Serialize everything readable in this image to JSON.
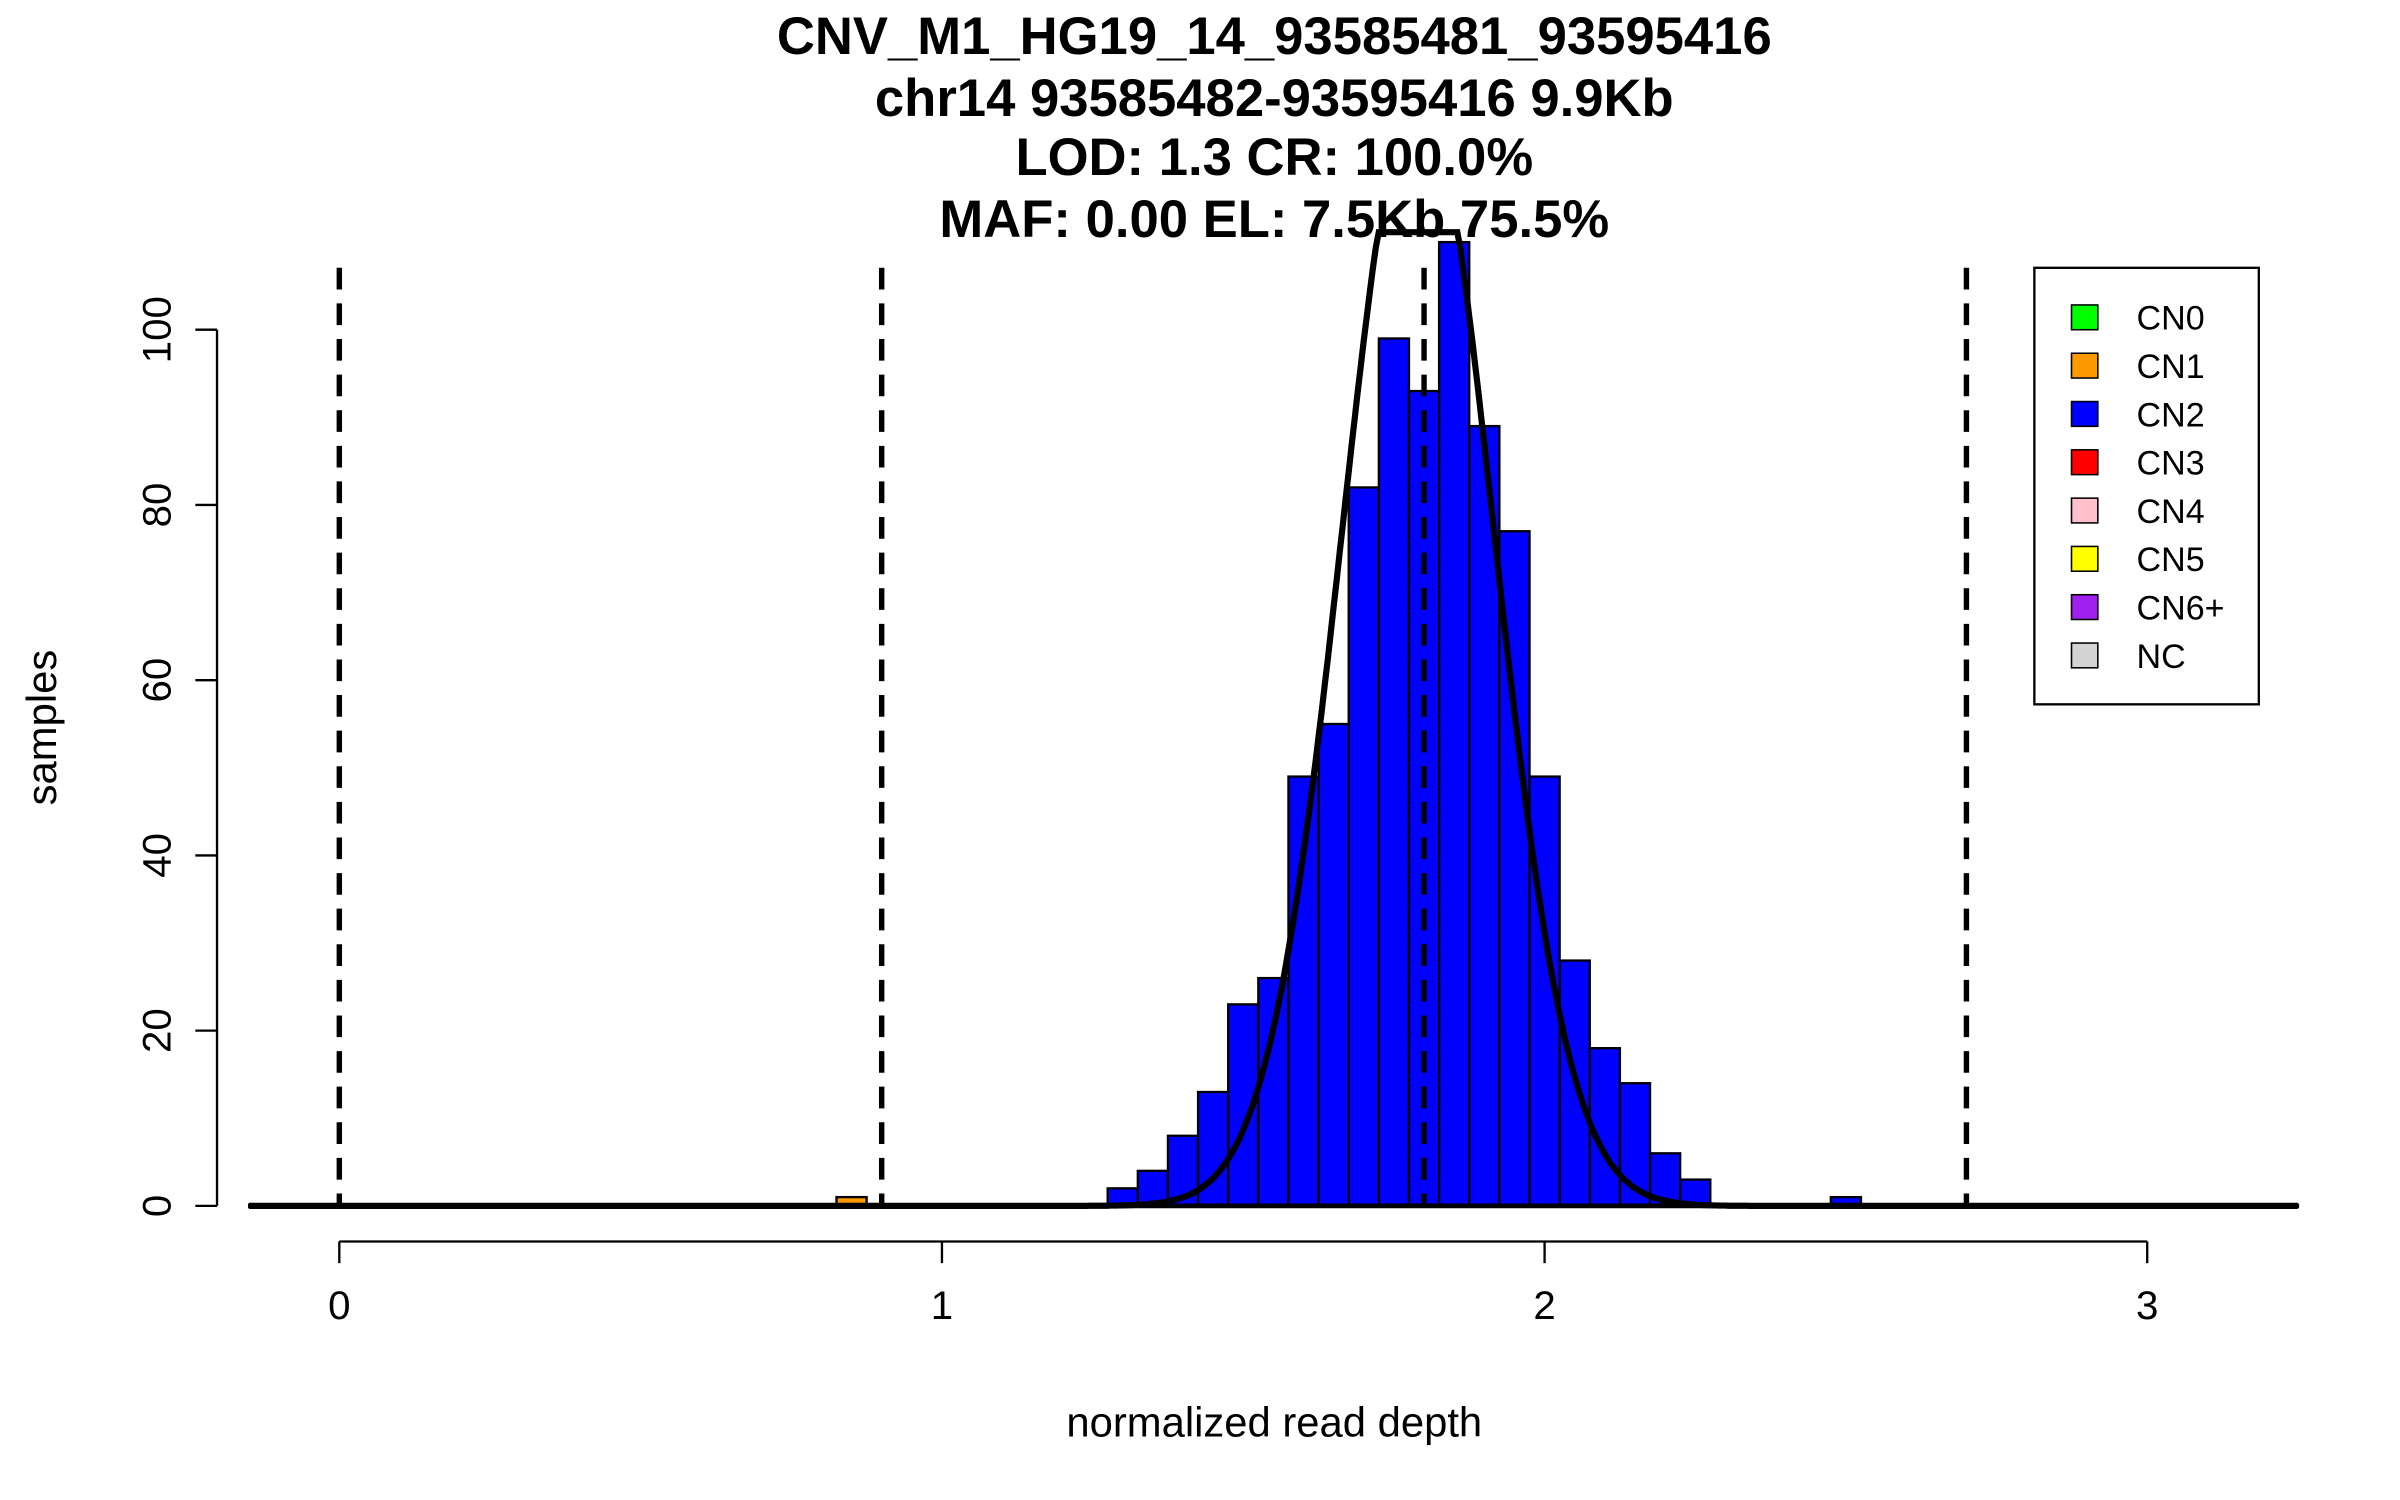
{
  "chart_data": {
    "type": "bar",
    "title_lines": [
      "CNV_M1_HG19_14_93585481_93595416",
      "chr14 93585482-93595416 9.9Kb",
      "LOD: 1.3 CR: 100.0%",
      "MAF: 0.00 EL: 7.5Kb 75.5%"
    ],
    "xlabel": "normalized read depth",
    "ylabel": "samples",
    "xlim": [
      -0.15,
      3.25
    ],
    "ylim": [
      0,
      113
    ],
    "xticks": [
      "0",
      "1",
      "2",
      "3"
    ],
    "yticks": [
      "0",
      "20",
      "40",
      "60",
      "80",
      "100"
    ],
    "bin_width": 0.05,
    "bins": [
      {
        "start": 0.825,
        "count": 1,
        "class": "CN1"
      },
      {
        "start": 1.275,
        "count": 2,
        "class": "CN2"
      },
      {
        "start": 1.325,
        "count": 4,
        "class": "CN2"
      },
      {
        "start": 1.375,
        "count": 8,
        "class": "CN2"
      },
      {
        "start": 1.425,
        "count": 13,
        "class": "CN2"
      },
      {
        "start": 1.475,
        "count": 23,
        "class": "CN2"
      },
      {
        "start": 1.525,
        "count": 26,
        "class": "CN2"
      },
      {
        "start": 1.575,
        "count": 49,
        "class": "CN2"
      },
      {
        "start": 1.625,
        "count": 55,
        "class": "CN2"
      },
      {
        "start": 1.675,
        "count": 82,
        "class": "CN2"
      },
      {
        "start": 1.725,
        "count": 99,
        "class": "CN2"
      },
      {
        "start": 1.775,
        "count": 93,
        "class": "CN2"
      },
      {
        "start": 1.825,
        "count": 110,
        "class": "CN2"
      },
      {
        "start": 1.875,
        "count": 89,
        "class": "CN2"
      },
      {
        "start": 1.925,
        "count": 77,
        "class": "CN2"
      },
      {
        "start": 1.975,
        "count": 49,
        "class": "CN2"
      },
      {
        "start": 2.025,
        "count": 28,
        "class": "CN2"
      },
      {
        "start": 2.075,
        "count": 18,
        "class": "CN2"
      },
      {
        "start": 2.125,
        "count": 14,
        "class": "CN2"
      },
      {
        "start": 2.175,
        "count": 6,
        "class": "CN2"
      },
      {
        "start": 2.225,
        "count": 3,
        "class": "CN2"
      },
      {
        "start": 2.475,
        "count": 1,
        "class": "CN2"
      }
    ],
    "dashed_lines": [
      0,
      0.9,
      1.8,
      2.7
    ],
    "fit_curve": {
      "mean": 1.79,
      "sd": 0.125,
      "peak": 128
    },
    "legend": [
      {
        "label": "CN0",
        "color": "#00ff00"
      },
      {
        "label": "CN1",
        "color": "#ff9900"
      },
      {
        "label": "CN2",
        "color": "#0000ff"
      },
      {
        "label": "CN3",
        "color": "#ff0000"
      },
      {
        "label": "CN4",
        "color": "#ffc0cb"
      },
      {
        "label": "CN5",
        "color": "#ffff00"
      },
      {
        "label": "CN6+",
        "color": "#a020f0"
      },
      {
        "label": "NC",
        "color": "#d3d3d3"
      }
    ],
    "legend_position": "top-right"
  }
}
